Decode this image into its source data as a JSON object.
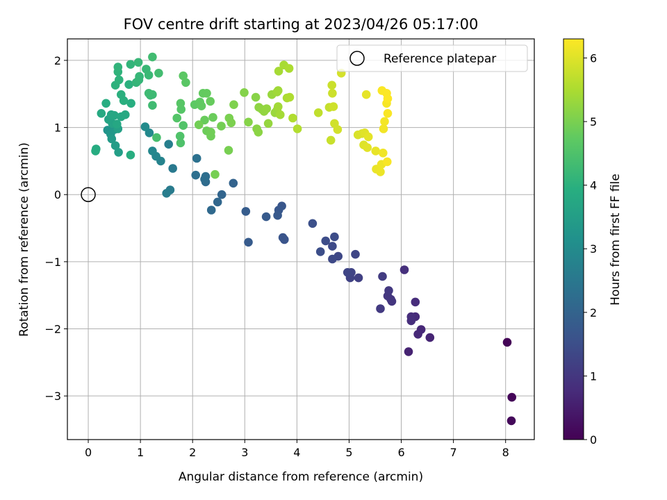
{
  "chart_data": {
    "type": "scatter",
    "title": "FOV centre drift starting at 2023/04/26 05:17:00",
    "xlabel": "Angular distance from reference (arcmin)",
    "ylabel": "Rotation from reference (arcmin)",
    "xlim": [
      -0.4,
      8.55
    ],
    "ylim": [
      -3.65,
      2.32
    ],
    "xticks": [
      "0",
      "1",
      "2",
      "3",
      "4",
      "5",
      "6",
      "7",
      "8"
    ],
    "yticks": [
      "−3",
      "−2",
      "−1",
      "0",
      "1",
      "2"
    ],
    "grid": true,
    "legend": {
      "position": "top-right",
      "entries": [
        "Reference platepar"
      ]
    },
    "colorbar": {
      "label": "Hours from first FF file",
      "range": [
        0,
        6.3
      ],
      "ticks": [
        "0",
        "1",
        "2",
        "3",
        "4",
        "5",
        "6"
      ],
      "colormap": "viridis"
    },
    "reference": {
      "name": "Reference platepar",
      "x": 0,
      "y": 0
    },
    "points": [
      [
        8.03,
        -2.2,
        0.05
      ],
      [
        8.12,
        -3.02,
        0.08
      ],
      [
        8.11,
        -3.37,
        0.12
      ],
      [
        6.14,
        -2.34,
        0.6
      ],
      [
        6.55,
        -2.13,
        0.65
      ],
      [
        6.38,
        -2.01,
        0.7
      ],
      [
        6.32,
        -2.08,
        0.72
      ],
      [
        6.27,
        -1.82,
        0.75
      ],
      [
        6.27,
        -1.6,
        0.78
      ],
      [
        6.19,
        -1.82,
        0.8
      ],
      [
        6.19,
        -1.88,
        0.82
      ],
      [
        6.06,
        -1.12,
        0.85
      ],
      [
        5.8,
        -1.56,
        0.95
      ],
      [
        5.82,
        -1.59,
        0.97
      ],
      [
        5.74,
        -1.51,
        1.0
      ],
      [
        5.76,
        -1.43,
        1.03
      ],
      [
        5.6,
        -1.7,
        1.06
      ],
      [
        5.64,
        -1.22,
        1.1
      ],
      [
        5.18,
        -1.24,
        1.2
      ],
      [
        5.02,
        -1.24,
        1.23
      ],
      [
        5.04,
        -1.16,
        1.26
      ],
      [
        4.97,
        -1.16,
        1.29
      ],
      [
        5.12,
        -0.89,
        1.32
      ],
      [
        4.79,
        -0.92,
        1.35
      ],
      [
        4.68,
        -0.96,
        1.38
      ],
      [
        4.68,
        -0.77,
        1.41
      ],
      [
        4.72,
        -0.63,
        1.44
      ],
      [
        4.55,
        -0.69,
        1.47
      ],
      [
        4.45,
        -0.85,
        1.5
      ],
      [
        4.3,
        -0.43,
        1.53
      ],
      [
        3.76,
        -0.67,
        1.62
      ],
      [
        3.73,
        -0.64,
        1.65
      ],
      [
        3.71,
        -0.17,
        1.68
      ],
      [
        3.65,
        -0.23,
        1.71
      ],
      [
        3.63,
        -0.31,
        1.74
      ],
      [
        3.41,
        -0.33,
        1.77
      ],
      [
        3.07,
        -0.71,
        1.8
      ],
      [
        3.02,
        -0.25,
        1.83
      ],
      [
        2.78,
        0.17,
        2.0
      ],
      [
        2.56,
        0.0,
        2.05
      ],
      [
        2.48,
        -0.11,
        2.1
      ],
      [
        2.36,
        -0.23,
        2.15
      ],
      [
        2.25,
        0.19,
        2.2
      ],
      [
        2.23,
        0.23,
        2.23
      ],
      [
        2.25,
        0.27,
        2.26
      ],
      [
        2.06,
        0.29,
        2.3
      ],
      [
        2.08,
        0.54,
        2.35
      ],
      [
        1.62,
        0.39,
        2.55
      ],
      [
        1.57,
        0.07,
        2.6
      ],
      [
        1.5,
        0.02,
        2.65
      ],
      [
        1.54,
        0.75,
        2.7
      ],
      [
        1.39,
        0.5,
        2.8
      ],
      [
        1.3,
        0.57,
        2.85
      ],
      [
        1.23,
        0.65,
        2.9
      ],
      [
        1.17,
        0.92,
        2.95
      ],
      [
        1.09,
        1.01,
        3.0
      ],
      [
        0.37,
        0.96,
        3.2
      ],
      [
        0.43,
        0.9,
        3.3
      ],
      [
        0.5,
        0.97,
        3.35
      ],
      [
        0.45,
        0.83,
        3.4
      ],
      [
        0.52,
        0.73,
        3.45
      ],
      [
        0.58,
        0.63,
        3.5
      ],
      [
        0.57,
        0.98,
        3.55
      ],
      [
        0.46,
        1.06,
        3.6
      ],
      [
        0.39,
        1.12,
        3.65
      ],
      [
        0.44,
        1.19,
        3.7
      ],
      [
        0.5,
        1.18,
        3.72
      ],
      [
        0.55,
        1.05,
        3.74
      ],
      [
        0.63,
        1.16,
        3.76
      ],
      [
        0.71,
        1.19,
        3.78
      ],
      [
        0.25,
        1.21,
        3.8
      ],
      [
        0.15,
        0.68,
        3.85
      ],
      [
        0.14,
        0.65,
        3.87
      ],
      [
        0.34,
        1.36,
        3.9
      ],
      [
        0.81,
        0.59,
        3.92
      ],
      [
        0.82,
        1.36,
        3.94
      ],
      [
        0.68,
        1.4,
        3.96
      ],
      [
        0.63,
        1.49,
        3.98
      ],
      [
        0.78,
        1.64,
        4.0
      ],
      [
        0.52,
        1.63,
        4.02
      ],
      [
        0.59,
        1.71,
        4.04
      ],
      [
        0.57,
        1.83,
        4.06
      ],
      [
        0.57,
        1.9,
        4.08
      ],
      [
        0.81,
        1.94,
        4.1
      ],
      [
        0.92,
        1.67,
        4.12
      ],
      [
        0.97,
        1.71,
        4.14
      ],
      [
        0.98,
        1.76,
        4.16
      ],
      [
        0.96,
        1.97,
        4.18
      ],
      [
        1.11,
        1.87,
        4.2
      ],
      [
        1.16,
        1.78,
        4.22
      ],
      [
        1.19,
        1.48,
        4.24
      ],
      [
        1.23,
        1.49,
        4.26
      ],
      [
        1.16,
        1.51,
        4.28
      ],
      [
        1.23,
        1.33,
        4.3
      ],
      [
        1.23,
        2.05,
        4.32
      ],
      [
        1.35,
        1.81,
        4.34
      ],
      [
        1.31,
        0.85,
        4.4
      ],
      [
        1.77,
        0.77,
        4.5
      ],
      [
        1.76,
        0.87,
        4.52
      ],
      [
        1.82,
        1.03,
        4.55
      ],
      [
        1.7,
        1.14,
        4.58
      ],
      [
        1.78,
        1.27,
        4.6
      ],
      [
        1.77,
        1.36,
        4.62
      ],
      [
        1.87,
        1.67,
        4.65
      ],
      [
        1.82,
        1.77,
        4.68
      ],
      [
        2.04,
        1.34,
        4.7
      ],
      [
        2.14,
        1.38,
        4.72
      ],
      [
        2.17,
        1.32,
        4.74
      ],
      [
        2.2,
        1.51,
        4.76
      ],
      [
        2.27,
        1.51,
        4.78
      ],
      [
        2.34,
        1.39,
        4.8
      ],
      [
        2.23,
        1.11,
        4.82
      ],
      [
        2.39,
        1.15,
        4.84
      ],
      [
        2.27,
        0.95,
        4.86
      ],
      [
        2.35,
        0.87,
        4.88
      ],
      [
        2.35,
        0.93,
        4.9
      ],
      [
        2.12,
        1.04,
        4.92
      ],
      [
        2.55,
        1.02,
        4.94
      ],
      [
        2.43,
        0.3,
        4.96
      ],
      [
        2.69,
        0.66,
        4.98
      ],
      [
        2.7,
        1.14,
        5.0
      ],
      [
        2.74,
        1.07,
        5.02
      ],
      [
        2.79,
        1.34,
        5.04
      ],
      [
        2.99,
        1.52,
        5.1
      ],
      [
        3.07,
        1.08,
        5.12
      ],
      [
        3.21,
        1.45,
        5.14
      ],
      [
        3.23,
        0.98,
        5.16
      ],
      [
        3.26,
        0.93,
        5.18
      ],
      [
        3.27,
        1.3,
        5.2
      ],
      [
        3.33,
        1.27,
        5.22
      ],
      [
        3.37,
        1.24,
        5.24
      ],
      [
        3.42,
        1.28,
        5.26
      ],
      [
        3.45,
        1.06,
        5.28
      ],
      [
        3.52,
        1.49,
        5.3
      ],
      [
        3.58,
        1.22,
        5.32
      ],
      [
        3.62,
        1.26,
        5.34
      ],
      [
        3.62,
        1.53,
        5.36
      ],
      [
        3.64,
        1.55,
        5.38
      ],
      [
        3.64,
        1.31,
        5.4
      ],
      [
        3.68,
        1.19,
        5.42
      ],
      [
        3.65,
        1.84,
        5.44
      ],
      [
        3.75,
        1.93,
        5.46
      ],
      [
        3.81,
        1.44,
        5.48
      ],
      [
        3.85,
        1.88,
        5.5
      ],
      [
        3.86,
        1.45,
        5.52
      ],
      [
        3.92,
        1.14,
        5.54
      ],
      [
        4.01,
        0.98,
        5.56
      ],
      [
        4.41,
        1.22,
        5.7
      ],
      [
        4.62,
        1.3,
        5.75
      ],
      [
        4.65,
        0.81,
        5.78
      ],
      [
        4.67,
        1.63,
        5.8
      ],
      [
        4.68,
        1.51,
        5.82
      ],
      [
        4.7,
        1.31,
        5.84
      ],
      [
        4.72,
        1.06,
        5.86
      ],
      [
        4.78,
        0.97,
        5.88
      ],
      [
        4.85,
        1.81,
        5.9
      ],
      [
        5.17,
        0.89,
        5.95
      ],
      [
        5.25,
        0.91,
        5.97
      ],
      [
        5.28,
        0.74,
        5.99
      ],
      [
        5.3,
        0.92,
        6.01
      ],
      [
        5.35,
        0.7,
        6.03
      ],
      [
        5.37,
        0.86,
        6.05
      ],
      [
        5.33,
        1.49,
        6.07
      ],
      [
        5.51,
        0.65,
        6.09
      ],
      [
        5.52,
        0.38,
        6.11
      ],
      [
        5.6,
        0.34,
        6.13
      ],
      [
        5.62,
        0.45,
        6.15
      ],
      [
        5.65,
        0.62,
        6.17
      ],
      [
        5.66,
        0.98,
        6.19
      ],
      [
        5.68,
        1.09,
        6.21
      ],
      [
        5.72,
        1.36,
        6.23
      ],
      [
        5.73,
        0.49,
        6.25
      ],
      [
        5.74,
        1.21,
        6.26
      ],
      [
        5.63,
        1.55,
        6.27
      ],
      [
        5.72,
        1.51,
        6.28
      ],
      [
        5.74,
        1.43,
        6.29
      ]
    ]
  }
}
